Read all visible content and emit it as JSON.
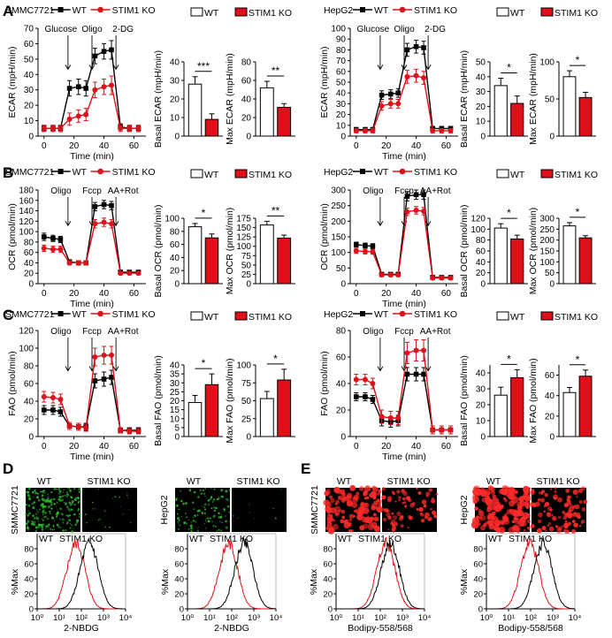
{
  "colors": {
    "wt": "#000000",
    "ko": "#e0101a",
    "green": "#2dbd2d",
    "red_cell": "#ff2a2a"
  },
  "panels": {
    "A": "A",
    "B": "B",
    "C": "C",
    "D": "D",
    "E": "E"
  },
  "legend": {
    "wt": "WT",
    "ko": "STIM1 KO"
  },
  "cells": {
    "smmc": "SMMC7721",
    "hepg2": "HepG2"
  },
  "chart_data": [
    {
      "id": "A1",
      "type": "line",
      "panel": "A",
      "cell": "SMMC7721",
      "title": "SMMC7721",
      "ylabel": "ECAR (mpH/min)",
      "xlabel": "Time (min)",
      "injections": [
        "Glucose",
        "Oligo",
        "2-DG"
      ],
      "injection_times": [
        16,
        32,
        48
      ],
      "ylim": [
        0,
        70
      ],
      "yticks": [
        0,
        10,
        20,
        30,
        40,
        50,
        60,
        70
      ],
      "xlim": [
        -4,
        68
      ],
      "xticks": [
        0,
        20,
        40,
        60
      ],
      "x": [
        0,
        6,
        11,
        17,
        23,
        28,
        34,
        40,
        45,
        51,
        57,
        63
      ],
      "series": [
        {
          "name": "WT",
          "values": [
            5,
            5,
            5,
            31,
            32,
            31,
            52,
            55,
            56,
            6,
            5,
            5
          ],
          "err": [
            2,
            2,
            2,
            5,
            5,
            5,
            5,
            5,
            6,
            2,
            2,
            2
          ]
        },
        {
          "name": "STIM1 KO",
          "values": [
            5,
            5,
            5,
            11,
            13,
            14,
            30,
            32,
            33,
            5,
            5,
            5
          ],
          "err": [
            2,
            2,
            2,
            4,
            4,
            4,
            5,
            5,
            6,
            2,
            2,
            2
          ]
        }
      ]
    },
    {
      "id": "A2",
      "type": "bar",
      "ylabel": "Basal ECAR (mpH/min)",
      "ylim": [
        0,
        40
      ],
      "yticks": [
        0,
        10,
        20,
        30,
        40
      ],
      "categories": [
        "WT",
        "STIM1 KO"
      ],
      "values": [
        28,
        9
      ],
      "err": [
        4,
        3
      ],
      "sig": "***"
    },
    {
      "id": "A3",
      "type": "bar",
      "ylabel": "Max ECAR (mpH/min)",
      "ylim": [
        0,
        80
      ],
      "yticks": [
        0,
        20,
        40,
        60,
        80
      ],
      "categories": [
        "WT",
        "STIM1 KO"
      ],
      "values": [
        52,
        31
      ],
      "err": [
        7,
        4
      ],
      "sig": "**"
    },
    {
      "id": "A4",
      "type": "line",
      "panel": "",
      "cell": "HepG2",
      "title": "HepG2",
      "ylabel": "ECAR (mpH/min)",
      "xlabel": "Time (min)",
      "injections": [
        "Glucose",
        "Oligo",
        "2-DG"
      ],
      "injection_times": [
        16,
        32,
        48
      ],
      "ylim": [
        0,
        100
      ],
      "yticks": [
        0,
        10,
        20,
        30,
        40,
        50,
        60,
        70,
        80,
        90,
        100
      ],
      "xlim": [
        -4,
        68
      ],
      "xticks": [
        0,
        20,
        40,
        60
      ],
      "x": [
        0,
        6,
        11,
        17,
        23,
        28,
        34,
        40,
        45,
        51,
        57,
        63
      ],
      "series": [
        {
          "name": "WT",
          "values": [
            6,
            6,
            6,
            38,
            39,
            40,
            80,
            83,
            82,
            7,
            7,
            7
          ],
          "err": [
            2,
            2,
            2,
            4,
            4,
            4,
            6,
            6,
            6,
            2,
            2,
            2
          ]
        },
        {
          "name": "STIM1 KO",
          "values": [
            5,
            5,
            5,
            28,
            30,
            30,
            55,
            56,
            54,
            5,
            5,
            5
          ],
          "err": [
            2,
            2,
            2,
            4,
            4,
            4,
            6,
            6,
            6,
            2,
            2,
            2
          ]
        }
      ]
    },
    {
      "id": "A5",
      "type": "bar",
      "ylabel": "Basal ECAR (mpH/min)",
      "ylim": [
        0,
        50
      ],
      "yticks": [
        0,
        10,
        20,
        30,
        40,
        50
      ],
      "categories": [
        "WT",
        "STIM1 KO"
      ],
      "values": [
        34,
        22
      ],
      "err": [
        5,
        5
      ],
      "sig": "*"
    },
    {
      "id": "A6",
      "type": "bar",
      "ylabel": "Max ECAR (mpH/min)",
      "ylim": [
        0,
        100
      ],
      "yticks": [
        0,
        50,
        100
      ],
      "categories": [
        "WT",
        "STIM1 KO"
      ],
      "values": [
        80,
        52
      ],
      "err": [
        8,
        7
      ],
      "sig": "*"
    },
    {
      "id": "B1",
      "type": "line",
      "panel": "B",
      "cell": "SMMC7721",
      "title": "SMMC7721",
      "ylabel": "OCR (pmol/min)",
      "xlabel": "Time (min)",
      "injections": [
        "Oligo",
        "Fccp",
        "AA+Rot"
      ],
      "injection_times": [
        16,
        32,
        48
      ],
      "ylim": [
        0,
        180
      ],
      "yticks": [
        0,
        20,
        40,
        60,
        80,
        100,
        120,
        140,
        160,
        180
      ],
      "xlim": [
        -4,
        68
      ],
      "xticks": [
        0,
        20,
        40,
        60
      ],
      "x": [
        0,
        6,
        11,
        17,
        23,
        28,
        34,
        40,
        45,
        51,
        57,
        63
      ],
      "series": [
        {
          "name": "WT",
          "values": [
            90,
            87,
            85,
            42,
            40,
            40,
            148,
            152,
            150,
            22,
            22,
            22
          ],
          "err": [
            7,
            6,
            6,
            4,
            4,
            4,
            8,
            8,
            8,
            3,
            3,
            3
          ]
        },
        {
          "name": "STIM1 KO",
          "values": [
            68,
            66,
            66,
            40,
            40,
            40,
            115,
            118,
            115,
            20,
            20,
            20
          ],
          "err": [
            6,
            6,
            6,
            4,
            4,
            4,
            8,
            8,
            8,
            3,
            3,
            3
          ]
        }
      ]
    },
    {
      "id": "B2",
      "type": "bar",
      "ylabel": "Basal OCR (pmol/min)",
      "ylim": [
        0,
        100
      ],
      "yticks": [
        0,
        20,
        40,
        60,
        80,
        100
      ],
      "categories": [
        "WT",
        "STIM1 KO"
      ],
      "values": [
        87,
        70
      ],
      "err": [
        5,
        6
      ],
      "sig": "*"
    },
    {
      "id": "B3",
      "type": "bar",
      "ylabel": "Max OCR (pmol/min)",
      "ylim": [
        0,
        175
      ],
      "yticks": [
        0,
        25,
        50,
        75,
        100,
        125,
        150,
        175
      ],
      "categories": [
        "WT",
        "STIM1 KO"
      ],
      "values": [
        157,
        122
      ],
      "err": [
        10,
        8
      ],
      "sig": "**"
    },
    {
      "id": "B4",
      "type": "line",
      "panel": "",
      "cell": "HepG2",
      "title": "HepG2",
      "ylabel": "OCR (pmol/min)",
      "xlabel": "Time (min)",
      "injections": [
        "Oligo",
        "Fccp",
        "AA+Rot"
      ],
      "injection_times": [
        16,
        32,
        48
      ],
      "ylim": [
        0,
        300
      ],
      "yticks": [
        0,
        50,
        100,
        150,
        200,
        250,
        300
      ],
      "xlim": [
        -4,
        68
      ],
      "xticks": [
        0,
        20,
        40,
        60
      ],
      "x": [
        0,
        6,
        11,
        17,
        23,
        28,
        34,
        40,
        45,
        51,
        57,
        63
      ],
      "series": [
        {
          "name": "WT",
          "values": [
            125,
            122,
            120,
            30,
            30,
            30,
            280,
            285,
            285,
            20,
            20,
            20
          ],
          "err": [
            8,
            8,
            8,
            4,
            4,
            4,
            15,
            15,
            15,
            3,
            3,
            3
          ]
        },
        {
          "name": "STIM1 KO",
          "values": [
            105,
            103,
            102,
            28,
            28,
            28,
            230,
            235,
            232,
            18,
            18,
            18
          ],
          "err": [
            8,
            8,
            8,
            4,
            4,
            4,
            12,
            12,
            12,
            3,
            3,
            3
          ]
        }
      ]
    },
    {
      "id": "B5",
      "type": "bar",
      "ylabel": "Basal OCR (pmol/min)",
      "ylim": [
        0,
        120
      ],
      "yticks": [
        0,
        20,
        40,
        60,
        80,
        100,
        120
      ],
      "categories": [
        "WT",
        "STIM1 KO"
      ],
      "values": [
        102,
        82
      ],
      "err": [
        8,
        7
      ],
      "sig": "*"
    },
    {
      "id": "B6",
      "type": "bar",
      "ylabel": "Max OCR (pmol/min)",
      "ylim": [
        0,
        300
      ],
      "yticks": [
        0,
        50,
        100,
        150,
        200,
        250,
        300
      ],
      "categories": [
        "WT",
        "STIM1 KO"
      ],
      "values": [
        265,
        210
      ],
      "err": [
        15,
        10
      ],
      "sig": "*"
    },
    {
      "id": "C1",
      "type": "line",
      "panel": "C",
      "cell": "SMMC7721",
      "title": "SMMC7721",
      "ylabel": "FAO (pmol/min)",
      "xlabel": "Time (min)",
      "injections": [
        "Oligo",
        "Fccp",
        "AA+Rot"
      ],
      "injection_times": [
        16,
        32,
        48
      ],
      "ylim": [
        0,
        120
      ],
      "yticks": [
        0,
        20,
        40,
        60,
        80,
        100,
        120
      ],
      "xlim": [
        -4,
        68
      ],
      "xticks": [
        0,
        20,
        40,
        60
      ],
      "x": [
        0,
        6,
        11,
        17,
        23,
        28,
        34,
        40,
        45,
        51,
        57,
        63
      ],
      "series": [
        {
          "name": "WT",
          "values": [
            30,
            30,
            28,
            12,
            11,
            11,
            63,
            65,
            67,
            7,
            7,
            7
          ],
          "err": [
            5,
            5,
            5,
            4,
            4,
            4,
            8,
            8,
            8,
            3,
            3,
            3
          ]
        },
        {
          "name": "STIM1 KO",
          "values": [
            45,
            44,
            42,
            12,
            11,
            10,
            90,
            92,
            92,
            7,
            6,
            6
          ],
          "err": [
            6,
            6,
            6,
            4,
            4,
            4,
            10,
            10,
            10,
            3,
            3,
            3
          ]
        }
      ]
    },
    {
      "id": "C2",
      "type": "bar",
      "ylabel": "Basal FAO (pmol/min)",
      "ylim": [
        0,
        40
      ],
      "yticks": [
        0,
        5,
        10,
        15,
        20,
        25,
        30,
        35,
        40
      ],
      "categories": [
        "WT",
        "STIM1 KO"
      ],
      "values": [
        19,
        29
      ],
      "err": [
        4,
        6
      ],
      "sig": "*"
    },
    {
      "id": "C3",
      "type": "bar",
      "ylabel": "Max FAO (pmol/min)",
      "ylim": [
        0,
        100
      ],
      "yticks": [
        0,
        25,
        50,
        75,
        100
      ],
      "categories": [
        "WT",
        "STIM1 KO"
      ],
      "values": [
        53,
        79
      ],
      "err": [
        10,
        15
      ],
      "sig": "*"
    },
    {
      "id": "C4",
      "type": "line",
      "panel": "",
      "cell": "HepG2",
      "title": "HepG2",
      "ylabel": "FAO (pmol/min)",
      "xlabel": "Time (min)",
      "injections": [
        "Oligo",
        "Fccp",
        "AA+Rot"
      ],
      "injection_times": [
        16,
        32,
        48
      ],
      "ylim": [
        0,
        80
      ],
      "yticks": [
        0,
        20,
        40,
        60,
        80
      ],
      "xlim": [
        -4,
        68
      ],
      "xticks": [
        0,
        20,
        40,
        60
      ],
      "x": [
        0,
        6,
        11,
        17,
        23,
        28,
        34,
        40,
        45,
        51,
        57,
        63
      ],
      "series": [
        {
          "name": "WT",
          "values": [
            30,
            30,
            28,
            12,
            11,
            12,
            47,
            47,
            47,
            5,
            5,
            5
          ],
          "err": [
            3,
            3,
            3,
            4,
            4,
            4,
            5,
            5,
            5,
            3,
            3,
            3
          ]
        },
        {
          "name": "STIM1 KO",
          "values": [
            43,
            43,
            40,
            15,
            14,
            14,
            63,
            65,
            65,
            5,
            5,
            5
          ],
          "err": [
            4,
            4,
            4,
            5,
            5,
            5,
            8,
            8,
            8,
            3,
            3,
            3
          ]
        }
      ]
    },
    {
      "id": "C5",
      "type": "bar",
      "ylabel": "Basal FAO (pmol/min)",
      "ylim": [
        0,
        45
      ],
      "yticks": [
        0,
        10,
        20,
        30,
        40
      ],
      "categories": [
        "WT",
        "STIM1 KO"
      ],
      "values": [
        26,
        37
      ],
      "err": [
        5,
        5
      ],
      "sig": "*"
    },
    {
      "id": "C6",
      "type": "bar",
      "ylabel": "Max FAO (pmol/min)",
      "ylim": [
        0,
        70
      ],
      "yticks": [
        0,
        20,
        40,
        60
      ],
      "categories": [
        "WT",
        "STIM1 KO"
      ],
      "values": [
        43,
        59
      ],
      "err": [
        5,
        6
      ],
      "sig": "*"
    },
    {
      "id": "D1",
      "type": "histogram",
      "panel": "D",
      "cell": "SMMC7721",
      "ylabel": "%Max",
      "xlabel": "2-NBDG",
      "xticks": [
        "10⁰",
        "10¹",
        "10²",
        "10³",
        "10⁴"
      ],
      "legend": [
        "WT",
        "STIM1 KO"
      ],
      "peaks_log10": {
        "WT": 2.4,
        "STIM1 KO": 1.8
      }
    },
    {
      "id": "D2",
      "type": "histogram",
      "panel": "",
      "cell": "HepG2",
      "ylabel": "%Max",
      "xlabel": "2-NBDG",
      "xticks": [
        "10⁰",
        "10¹",
        "10²",
        "10³",
        "10⁴"
      ],
      "legend": [
        "WT",
        "STIM1 KO"
      ],
      "peaks_log10": {
        "WT": 2.6,
        "STIM1 KO": 1.9
      }
    },
    {
      "id": "E1",
      "type": "histogram",
      "panel": "E",
      "cell": "SMMC7721",
      "ylabel": "%Max",
      "xlabel": "Bodipy-558/568",
      "xticks": [
        "10⁰",
        "10¹",
        "10²",
        "10³",
        "10⁴"
      ],
      "legend": [
        "WT",
        "STIM1 KO"
      ],
      "peaks_log10": {
        "WT": 2.5,
        "STIM1 KO": 2.3
      }
    },
    {
      "id": "E2",
      "type": "histogram",
      "panel": "",
      "cell": "HepG2",
      "ylabel": "%Max",
      "xlabel": "Bodipy-558/568",
      "xticks": [
        "10⁰",
        "10¹",
        "10²",
        "10³",
        "10⁴"
      ],
      "legend": [
        "WT",
        "STIM1 KO"
      ],
      "peaks_log10": {
        "WT": 2.6,
        "STIM1 KO": 2.0
      }
    }
  ]
}
